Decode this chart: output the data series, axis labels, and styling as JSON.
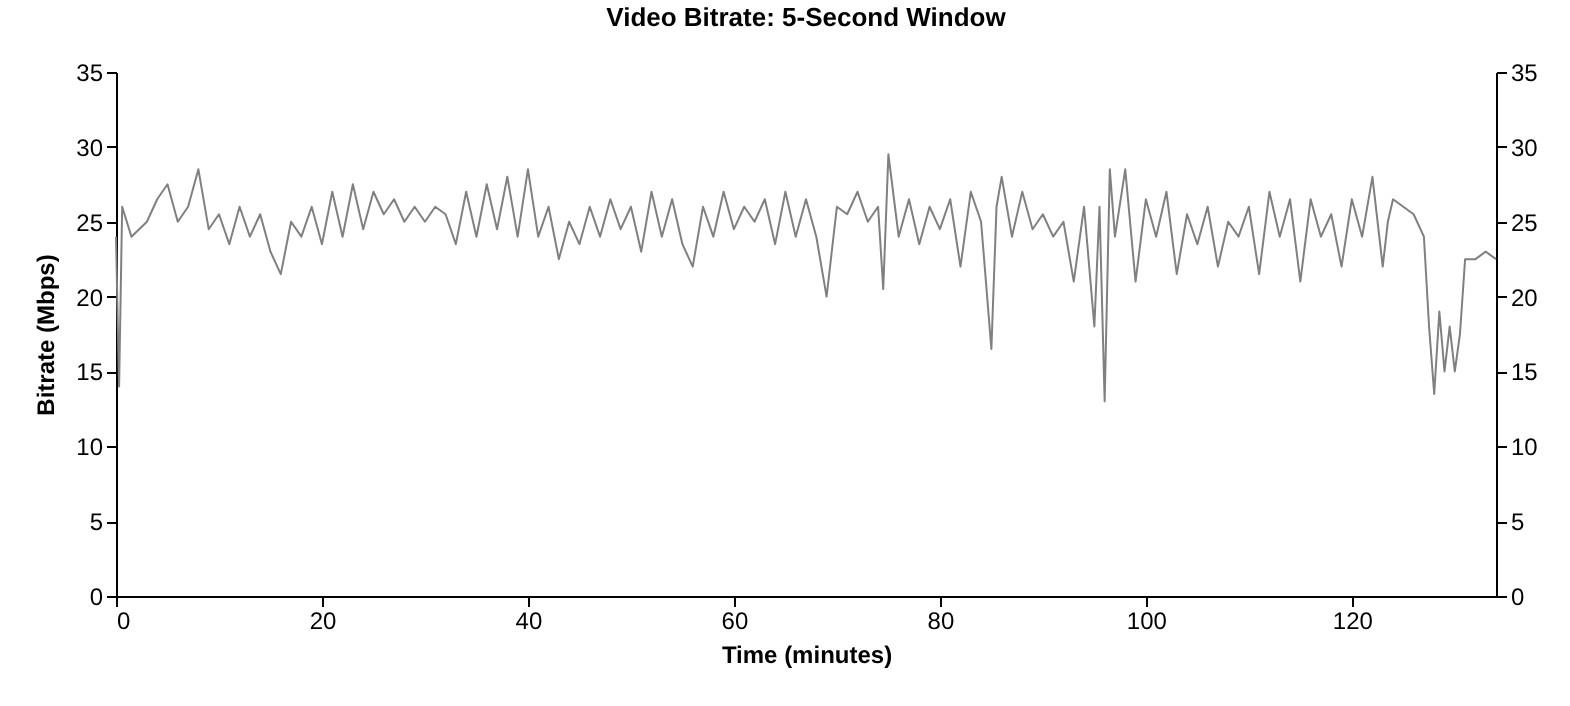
{
  "chart_data": {
    "type": "line",
    "title": "Video Bitrate: 5-Second Window",
    "xlabel": "Time (minutes)",
    "ylabel": "Bitrate (Mbps)",
    "xlim": [
      0,
      134
    ],
    "xticks": [
      0,
      20,
      40,
      60,
      80,
      100,
      120
    ],
    "ylim": [
      0,
      35
    ],
    "yticks": [
      0,
      5,
      10,
      15,
      20,
      25,
      30,
      35
    ],
    "y2lim": [
      0,
      35
    ],
    "y2ticks": [
      0,
      5,
      10,
      15,
      20,
      25,
      30,
      35
    ],
    "grid": false,
    "legend": false,
    "marker": "none",
    "line_style": "solid",
    "x": [
      0,
      0.3,
      0.6,
      1.5,
      3,
      4,
      5,
      6,
      7,
      8,
      9,
      10,
      11,
      12,
      13,
      14,
      15,
      16,
      17,
      18,
      19,
      20,
      21,
      22,
      23,
      24,
      25,
      26,
      27,
      28,
      29,
      30,
      31,
      32,
      33,
      34,
      35,
      36,
      37,
      38,
      39,
      40,
      41,
      42,
      43,
      44,
      45,
      46,
      47,
      48,
      49,
      50,
      51,
      52,
      53,
      54,
      55,
      56,
      57,
      58,
      59,
      60,
      61,
      62,
      63,
      64,
      65,
      66,
      67,
      68,
      69,
      70,
      71,
      72,
      73,
      74,
      74.5,
      75,
      76,
      77,
      78,
      79,
      80,
      81,
      82,
      83,
      84,
      85,
      85.5,
      86,
      87,
      88,
      89,
      90,
      91,
      92,
      93,
      94,
      95,
      95.5,
      96,
      96.5,
      97,
      98,
      99,
      100,
      101,
      102,
      103,
      104,
      105,
      106,
      107,
      108,
      109,
      110,
      111,
      112,
      113,
      114,
      115,
      116,
      117,
      118,
      119,
      120,
      121,
      122,
      123,
      123.5,
      124,
      125,
      126,
      127,
      127.5,
      128,
      128.5,
      129,
      129.5,
      130,
      130.5,
      131,
      132,
      133,
      134
    ],
    "series": [
      {
        "color": "#808080",
        "values": [
          24,
          14,
          26,
          24,
          25,
          26.5,
          27.5,
          25,
          26,
          28.5,
          24.5,
          25.5,
          23.5,
          26,
          24,
          25.5,
          23,
          21.5,
          25,
          24,
          26,
          23.5,
          27,
          24,
          27.5,
          24.5,
          27,
          25.5,
          26.5,
          25,
          26,
          25,
          26,
          25.5,
          23.5,
          27,
          24,
          27.5,
          24.5,
          28,
          24,
          28.5,
          24,
          26,
          22.5,
          25,
          23.5,
          26,
          24,
          26.5,
          24.5,
          26,
          23,
          27,
          24,
          26.5,
          23.5,
          22,
          26,
          24,
          27,
          24.5,
          26,
          25,
          26.5,
          23.5,
          27,
          24,
          26.5,
          24,
          20,
          26,
          25.5,
          27,
          25,
          26,
          20.5,
          29.5,
          24,
          26.5,
          23.5,
          26,
          24.5,
          26.5,
          22,
          27,
          25,
          16.5,
          26,
          28,
          24,
          27,
          24.5,
          25.5,
          24,
          25,
          21,
          26,
          18,
          26,
          13,
          28.5,
          24,
          28.5,
          21,
          26.5,
          24,
          27,
          21.5,
          25.5,
          23.5,
          26,
          22,
          25,
          24,
          26,
          21.5,
          27,
          24,
          26.5,
          21,
          26.5,
          24,
          25.5,
          22,
          26.5,
          24,
          28,
          22,
          25,
          26.5,
          26,
          25.5,
          24,
          18,
          13.5,
          19,
          15,
          18,
          15,
          17.5,
          22.5,
          22.5,
          23,
          22.5
        ]
      }
    ]
  }
}
